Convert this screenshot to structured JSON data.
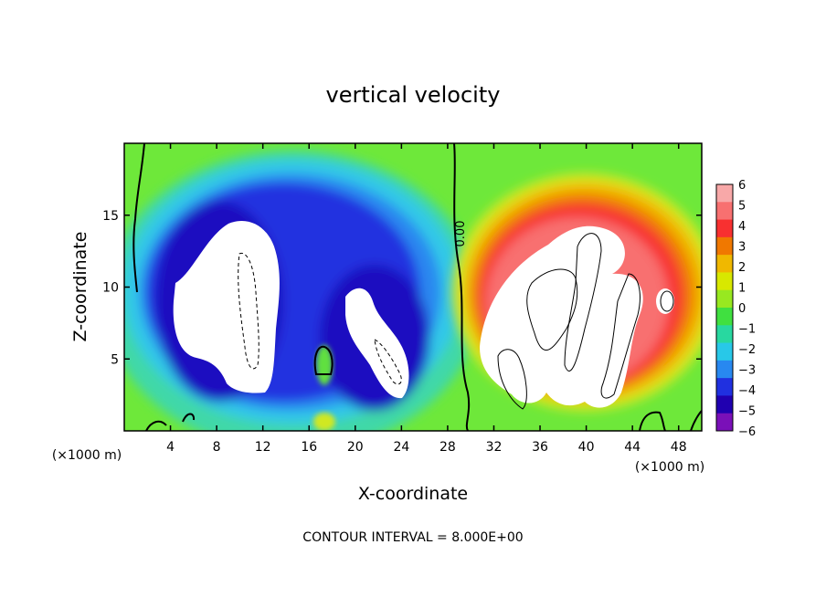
{
  "chart_data": {
    "type": "heatmap",
    "title": "vertical velocity",
    "xlabel": "X-coordinate",
    "ylabel": "Z-coordinate",
    "x_unit_label": "(×1000 m)",
    "x_unit_label_right": "(×1000 m)",
    "xlim": [
      0,
      50
    ],
    "ylim": [
      0,
      20
    ],
    "x_ticks": [
      4,
      8,
      12,
      16,
      20,
      24,
      28,
      32,
      36,
      40,
      44,
      48
    ],
    "y_ticks": [
      5,
      10,
      15
    ],
    "contour_label": "0.00",
    "footer": "CONTOUR INTERVAL = 8.000E+00",
    "colorbar": {
      "ticks": [
        6,
        5,
        4,
        3,
        2,
        1,
        0,
        -1,
        -2,
        -3,
        -4,
        -5,
        -6
      ],
      "colors": [
        "#f8a8a8",
        "#f87070",
        "#f83030",
        "#f07800",
        "#f0b800",
        "#d8e800",
        "#98e820",
        "#40e040",
        "#28d8a0",
        "#28c8e8",
        "#2888f0",
        "#2030e0",
        "#2000b0",
        "#7a10b8"
      ]
    },
    "features": [
      {
        "name": "downdraft-core-left",
        "sign": "negative",
        "x_range": [
          6,
          12
        ],
        "z_range": [
          3,
          14
        ]
      },
      {
        "name": "downdraft-core-mid",
        "sign": "negative",
        "x_range": [
          19,
          25
        ],
        "z_range": [
          3,
          10
        ]
      },
      {
        "name": "updraft-core",
        "sign": "positive",
        "x_range": [
          32,
          46
        ],
        "z_range": [
          1.5,
          14.5
        ]
      }
    ]
  }
}
